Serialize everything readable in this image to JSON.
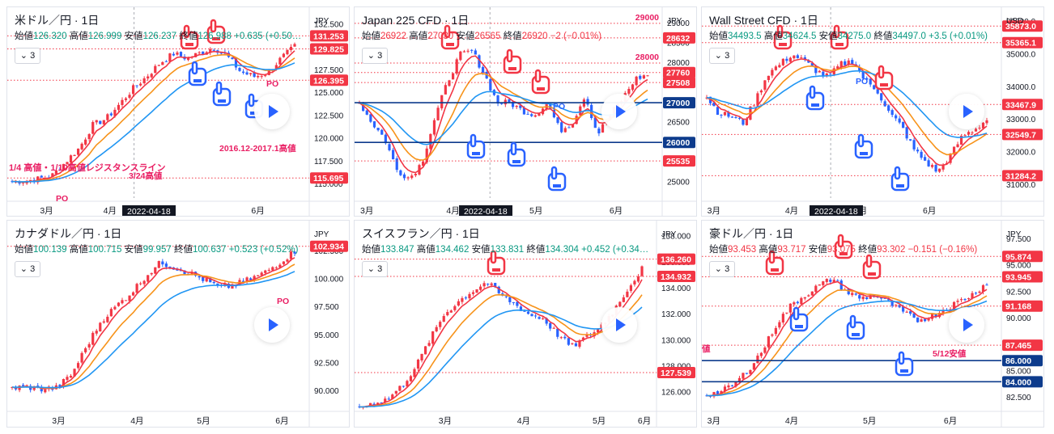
{
  "colors": {
    "up": "#f23645",
    "down": "#2962ff",
    "ma_fast": "#f23645",
    "ma_mid": "#f7931a",
    "ma_slow": "#2196f3",
    "hline": "#0d3b8c",
    "dotted": "#f23645",
    "tag_red": "#f23645",
    "tag_blue": "#0d3b8c",
    "pink_text": "#e91e63"
  },
  "icons": [
    "pointing-hand-icon",
    "sticky-note-icon",
    "play-icon",
    "chevron-down-icon"
  ],
  "panels": [
    {
      "title": "米ドル／円 · 1日",
      "ohlc": {
        "o_label": "始値",
        "o": "126.320",
        "h_label": "高値",
        "h": "126.999",
        "l_label": "安値",
        "l": "126.237",
        "c_label": "終値",
        "c": "126.988",
        "chg": "+0.635 (+0.50…"
      },
      "indicator_count": "3",
      "currency": "JPY",
      "date_badge": "2022-04-18",
      "x_labels": [
        "3月",
        "4月",
        "5月",
        "6月"
      ],
      "y_ticks": [
        "132.500",
        "130.000",
        "127.500",
        "125.000",
        "122.500",
        "120.000",
        "117.500",
        "115.000"
      ],
      "price_tags": [
        {
          "value": "131.253",
          "kind": "red"
        },
        {
          "value": "129.825",
          "kind": "red"
        },
        {
          "value": "126.395",
          "kind": "red"
        },
        {
          "value": "115.695",
          "kind": "red"
        }
      ],
      "annotations": [
        "2016.12-2017.1高値",
        "1/4 高値・1/10高値レジスタンスライン",
        "3/24高値",
        "PO",
        "PO"
      ]
    },
    {
      "title": "Japan 225 CFD · 1日",
      "ohlc": {
        "o_label": "始値",
        "o": "26922",
        "h_label": "高値",
        "h": "27030",
        "l_label": "安値",
        "l": "26565",
        "c_label": "終値",
        "c": "26920",
        "chg": "−2 (−0.01%)"
      },
      "indicator_count": "3",
      "currency": "JPY",
      "date_badge": "2022-04-18",
      "x_labels": [
        "3月",
        "4月",
        "5月",
        "6月"
      ],
      "y_ticks": [
        "29000",
        "28500",
        "28000",
        "27500",
        "27000",
        "26500",
        "26000",
        "25500",
        "25000"
      ],
      "price_tags": [
        {
          "value": "29000",
          "kind": "text"
        },
        {
          "value": "28632",
          "kind": "red"
        },
        {
          "value": "28000",
          "kind": "text"
        },
        {
          "value": "27760",
          "kind": "red"
        },
        {
          "value": "27508",
          "kind": "red"
        },
        {
          "value": "27000",
          "kind": "blue"
        },
        {
          "value": "26000",
          "kind": "blue"
        },
        {
          "value": "25535",
          "kind": "red"
        }
      ],
      "annotations": [
        "PO"
      ]
    },
    {
      "title": "Wall Street CFD · 1日",
      "ohlc": {
        "o_label": "始値",
        "o": "34493.5",
        "h_label": "高値",
        "h": "34624.5",
        "l_label": "安値",
        "l": "34275.0",
        "c_label": "終値",
        "c": "34497.0",
        "chg": "+3.5 (+0.01%)"
      },
      "indicator_count": "3",
      "currency": "USD",
      "date_badge": "2022-04-18",
      "x_labels": [
        "3月",
        "4月",
        "5月",
        "6月"
      ],
      "y_ticks": [
        "36000.0",
        "35000.0",
        "34000.0",
        "33000.0",
        "32000.0",
        "31000.0"
      ],
      "price_tags": [
        {
          "value": "35873.0",
          "kind": "red"
        },
        {
          "value": "35365.1",
          "kind": "red"
        },
        {
          "value": "33467.9",
          "kind": "red"
        },
        {
          "value": "32549.7",
          "kind": "red"
        },
        {
          "value": "31284.2",
          "kind": "red"
        }
      ],
      "annotations": [
        "PO"
      ]
    },
    {
      "title": "カナダドル／円 · 1日",
      "ohlc": {
        "o_label": "始値",
        "o": "100.139",
        "h_label": "高値",
        "h": "100.715",
        "l_label": "安値",
        "l": "99.957",
        "c_label": "終値",
        "c": "100.637",
        "chg": "+0.523 (+0.52%)"
      },
      "indicator_count": "3",
      "currency": "JPY",
      "date_badge": "",
      "x_labels": [
        "3月",
        "4月",
        "5月",
        "6月"
      ],
      "y_ticks": [
        "102.500",
        "100.000",
        "97.500",
        "95.000",
        "92.500",
        "90.000"
      ],
      "price_tags": [
        {
          "value": "102.934",
          "kind": "red"
        }
      ],
      "annotations": [
        "PO"
      ]
    },
    {
      "title": "スイスフラン／円 · 1日",
      "ohlc": {
        "o_label": "始値",
        "o": "133.847",
        "h_label": "高値",
        "h": "134.462",
        "l_label": "安値",
        "l": "133.831",
        "c_label": "終値",
        "c": "134.304",
        "chg": "+0.452 (+0.34…"
      },
      "indicator_count": "3",
      "currency": "JPY",
      "date_badge": "",
      "x_labels": [
        "3月",
        "4月",
        "5月",
        "6月"
      ],
      "y_ticks": [
        "138.000",
        "136.000",
        "134.000",
        "132.000",
        "130.000",
        "128.000",
        "126.000"
      ],
      "price_tags": [
        {
          "value": "136.260",
          "kind": "red"
        },
        {
          "value": "134.932",
          "kind": "red"
        },
        {
          "value": "127.539",
          "kind": "red"
        }
      ],
      "annotations": []
    },
    {
      "title": "豪ドル／円 · 1日",
      "ohlc": {
        "o_label": "始値",
        "o": "93.453",
        "h_label": "高値",
        "h": "93.717",
        "l_label": "安値",
        "l": "93.075",
        "c_label": "終値",
        "c": "93.302",
        "chg": "−0.151 (−0.16%)"
      },
      "indicator_count": "3",
      "currency": "JPY",
      "date_badge": "",
      "x_labels": [
        "3月",
        "4月",
        "5月",
        "6月"
      ],
      "y_ticks": [
        "97.500",
        "95.000",
        "92.500",
        "90.000",
        "87.500",
        "85.000",
        "82.500"
      ],
      "price_tags": [
        {
          "value": "95.874",
          "kind": "red"
        },
        {
          "value": "93.945",
          "kind": "red"
        },
        {
          "value": "91.168",
          "kind": "red"
        },
        {
          "value": "87.465",
          "kind": "red"
        },
        {
          "value": "86.000",
          "kind": "blue"
        },
        {
          "value": "84.000",
          "kind": "blue"
        }
      ],
      "annotations": [
        "5/12安値",
        "値"
      ]
    }
  ],
  "chart_data": [
    {
      "type": "candlestick",
      "title": "米ドル／円 · 1日",
      "ylim": [
        113.5,
        133.5
      ],
      "x": [
        "3月",
        "4月",
        "5月",
        "6月"
      ],
      "close_path": [
        115.3,
        115.4,
        115.6,
        116.0,
        117.5,
        119.0,
        121.5,
        122.2,
        123.8,
        125.5,
        126.8,
        128.3,
        129.3,
        128.8,
        129.4,
        130.0,
        129.0,
        127.3,
        126.8,
        127.2,
        128.8,
        130.1
      ]
    },
    {
      "type": "candlestick",
      "title": "Japan 225 CFD · 1日",
      "ylim": [
        24600,
        29200
      ],
      "x": [
        "3月",
        "4月",
        "5月",
        "6月"
      ],
      "close_path": [
        27000,
        26500,
        26100,
        25300,
        25100,
        25500,
        26600,
        27500,
        28200,
        28300,
        27700,
        27000,
        27000,
        26800,
        26700,
        27000,
        26300,
        26500,
        27200,
        26200,
        26700,
        27100,
        27600,
        27700
      ]
    },
    {
      "type": "candlestick",
      "title": "Wall Street CFD · 1日",
      "ylim": [
        30600,
        36200
      ],
      "x": [
        "3月",
        "4月",
        "5月",
        "6月"
      ],
      "close_path": [
        33700,
        33200,
        33100,
        32900,
        33600,
        34400,
        34700,
        35000,
        34800,
        34500,
        34300,
        34700,
        34800,
        34200,
        33900,
        33200,
        32800,
        32100,
        31700,
        31400,
        31900,
        32500,
        32700,
        33000
      ]
    },
    {
      "type": "candlestick",
      "title": "カナダドル／円 · 1日",
      "ylim": [
        88.5,
        104.5
      ],
      "x": [
        "3月",
        "4月",
        "5月",
        "6月"
      ],
      "close_path": [
        90.3,
        90.4,
        90.2,
        90.3,
        91.5,
        94.0,
        96.3,
        97.6,
        98.8,
        100.3,
        101.5,
        101.0,
        100.5,
        99.9,
        99.2,
        99.5,
        100.0,
        100.6,
        101.5,
        102.5
      ]
    },
    {
      "type": "candlestick",
      "title": "スイスフラン／円 · 1日",
      "ylim": [
        124.8,
        138.6
      ],
      "x": [
        "3月",
        "4月",
        "5月",
        "6月"
      ],
      "close_path": [
        124.9,
        125.2,
        125.5,
        126.5,
        128.0,
        130.1,
        132.0,
        133.0,
        133.8,
        134.5,
        133.5,
        132.8,
        132.0,
        131.7,
        130.5,
        129.5,
        130.2,
        131.0,
        132.3,
        134.0,
        135.5
      ]
    },
    {
      "type": "candlestick",
      "title": "豪ドル／円 · 1日",
      "ylim": [
        81.5,
        98.5
      ],
      "x": [
        "3月",
        "4月",
        "5月",
        "6月"
      ],
      "close_path": [
        82.8,
        83.0,
        83.8,
        85.2,
        87.0,
        89.5,
        91.2,
        92.2,
        93.1,
        93.8,
        92.5,
        91.9,
        92.2,
        91.5,
        90.6,
        89.8,
        90.2,
        90.9,
        91.6,
        92.3,
        93.4
      ]
    }
  ]
}
